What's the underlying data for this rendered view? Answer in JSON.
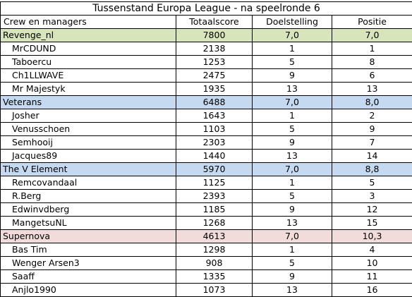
{
  "title": "Tussenstand Europa League  - na speelronde 6",
  "headers": [
    "Crew en managers",
    "Totaalscore",
    "Doelstelling",
    "Positie"
  ],
  "teams": [
    {
      "name": "Revenge_nl",
      "color": "#D8E4BC",
      "total": "7800",
      "doel": "7,0",
      "positie": "7,0",
      "members": [
        {
          "name": "MrCDUND",
          "total": "2138",
          "doel": "1",
          "positie": "1"
        },
        {
          "name": "Taboercu",
          "total": "1253",
          "doel": "5",
          "positie": "8"
        },
        {
          "name": "Ch1LLWAVE",
          "total": "2475",
          "doel": "9",
          "positie": "6"
        },
        {
          "name": "Mr Majestyk",
          "total": "1935",
          "doel": "13",
          "positie": "13"
        }
      ]
    },
    {
      "name": "Veterans",
      "color": "#C5D9F1",
      "total": "6488",
      "doel": "7,0",
      "positie": "8,0",
      "members": [
        {
          "name": "Josher",
          "total": "1643",
          "doel": "1",
          "positie": "2"
        },
        {
          "name": "Venusschoen",
          "total": "1103",
          "doel": "5",
          "positie": "9"
        },
        {
          "name": "Semhooij",
          "total": "2303",
          "doel": "9",
          "positie": "7"
        },
        {
          "name": "Jacques89",
          "total": "1440",
          "doel": "13",
          "positie": "14"
        }
      ]
    },
    {
      "name": "The V Element",
      "color": "#C5D9F1",
      "total": "5970",
      "doel": "7,0",
      "positie": "8,8",
      "members": [
        {
          "name": "Remcovandaal",
          "total": "1125",
          "doel": "1",
          "positie": "5"
        },
        {
          "name": "R.Berg",
          "total": "2393",
          "doel": "5",
          "positie": "3"
        },
        {
          "name": "Edwinvdberg",
          "total": "1185",
          "doel": "9",
          "positie": "12"
        },
        {
          "name": "MangetsuNL",
          "total": "1268",
          "doel": "13",
          "positie": "15"
        }
      ]
    },
    {
      "name": "Supernova",
      "color": "#F2DCDB",
      "total": "4613",
      "doel": "7,0",
      "positie": "10,3",
      "members": [
        {
          "name": "Bas Tim",
          "total": "1298",
          "doel": "1",
          "positie": "4"
        },
        {
          "name": "Wenger Arsen3",
          "total": "908",
          "doel": "5",
          "positie": "10"
        },
        {
          "name": "Saaff",
          "total": "1335",
          "doel": "9",
          "positie": "11"
        },
        {
          "name": "Anjlo1990",
          "total": "1073",
          "doel": "13",
          "positie": "16"
        }
      ]
    }
  ]
}
